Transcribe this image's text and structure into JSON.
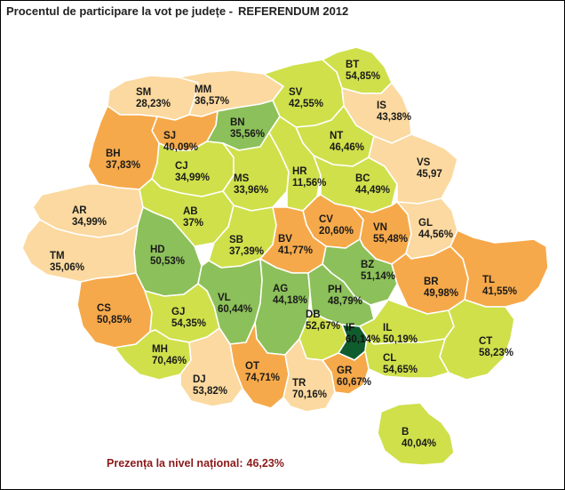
{
  "title": {
    "part1": "Procentul de participare la vot pe județe -",
    "part2": "REFERENDUM 2012"
  },
  "colors": {
    "very_low": "#fbd9a0",
    "low": "#f6a94a",
    "mid": "#cfe04b",
    "high": "#8cc05a",
    "very_high": "#0f5c2e",
    "label": "#1a1a1a",
    "national": "#8b1a1a"
  },
  "counties": [
    {
      "code": "SM",
      "value": "28,23%",
      "level": "very_low"
    },
    {
      "code": "MM",
      "value": "36,57%",
      "level": "very_low"
    },
    {
      "code": "SV",
      "value": "42,55%",
      "level": "mid"
    },
    {
      "code": "BT",
      "value": "54,85%",
      "level": "mid"
    },
    {
      "code": "SJ",
      "value": "40,09%",
      "level": "low"
    },
    {
      "code": "BN",
      "value": "35,56%",
      "level": "high"
    },
    {
      "code": "IS",
      "value": "43,38%",
      "level": "very_low"
    },
    {
      "code": "NT",
      "value": "46,46%",
      "level": "mid"
    },
    {
      "code": "BH",
      "value": "37,83%",
      "level": "low"
    },
    {
      "code": "CJ",
      "value": "34,99%",
      "level": "mid"
    },
    {
      "code": "MS",
      "value": "33,96%",
      "level": "mid"
    },
    {
      "code": "HR",
      "value": "11,56%",
      "level": "mid"
    },
    {
      "code": "BC",
      "value": "44,49%",
      "level": "mid"
    },
    {
      "code": "VS",
      "value": "45,97",
      "level": "very_low"
    },
    {
      "code": "AR",
      "value": "34,99%",
      "level": "very_low"
    },
    {
      "code": "AB",
      "value": "37%",
      "level": "mid"
    },
    {
      "code": "CV",
      "value": "20,60%",
      "level": "low"
    },
    {
      "code": "VN",
      "value": "55,48%",
      "level": "low"
    },
    {
      "code": "GL",
      "value": "44,56%",
      "level": "very_low"
    },
    {
      "code": "HD",
      "value": "50,53%",
      "level": "high"
    },
    {
      "code": "SB",
      "value": "37,39%",
      "level": "mid"
    },
    {
      "code": "BV",
      "value": "41,77%",
      "level": "low"
    },
    {
      "code": "BZ",
      "value": "51,14%",
      "level": "high"
    },
    {
      "code": "TM",
      "value": "35,06%",
      "level": "very_low"
    },
    {
      "code": "BR",
      "value": "49,98%",
      "level": "low"
    },
    {
      "code": "TL",
      "value": "41,55%",
      "level": "low"
    },
    {
      "code": "CS",
      "value": "50,85%",
      "level": "low"
    },
    {
      "code": "VL",
      "value": "60,44%",
      "level": "high"
    },
    {
      "code": "AG",
      "value": "44,18%",
      "level": "high"
    },
    {
      "code": "PH",
      "value": "48,79%",
      "level": "high"
    },
    {
      "code": "GJ",
      "value": "54,35%",
      "level": "mid"
    },
    {
      "code": "DB",
      "value": "52,67%",
      "level": "mid"
    },
    {
      "code": "IF",
      "value": "60,14%",
      "level": "very_high"
    },
    {
      "code": "IL",
      "value": "50,19%",
      "level": "mid"
    },
    {
      "code": "CT",
      "value": "58,23%",
      "level": "mid"
    },
    {
      "code": "MH",
      "value": "70,46%",
      "level": "mid"
    },
    {
      "code": "OT",
      "value": "74,71%",
      "level": "low"
    },
    {
      "code": "CL",
      "value": "54,65%",
      "level": "mid"
    },
    {
      "code": "DJ",
      "value": "53,82%",
      "level": "very_low"
    },
    {
      "code": "TR",
      "value": "70,16%",
      "level": "very_low"
    },
    {
      "code": "GR",
      "value": "60,67%",
      "level": "low"
    },
    {
      "code": "B",
      "value": "40,04%",
      "level": "mid"
    }
  ],
  "national": {
    "label": "Prezența la nivel național:",
    "value": "46,23%"
  }
}
